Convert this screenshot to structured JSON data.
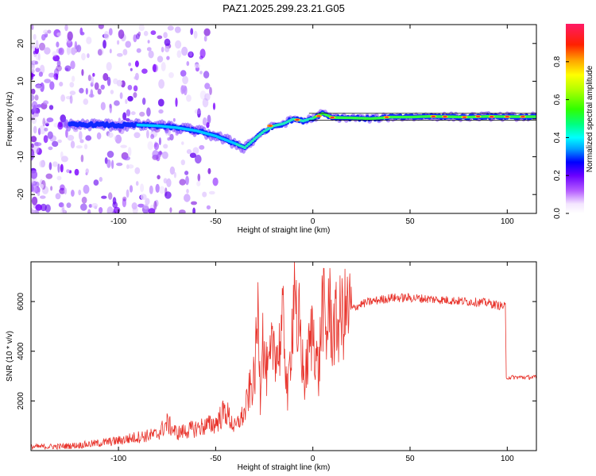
{
  "title": "PAZ1.2025.299.23.21.G05",
  "chart_data": [
    {
      "type": "heatmap",
      "name": "spectrogram",
      "xlabel": "Height of straight line (km)",
      "ylabel": "Frequency (Hz)",
      "xlim": [
        -145,
        115
      ],
      "ylim": [
        -25,
        25
      ],
      "x_ticks": [
        -100,
        -50,
        0,
        50,
        100
      ],
      "x_tick_labels": [
        "-100",
        "-50",
        "0",
        "50",
        "100"
      ],
      "y_ticks": [
        -20,
        -10,
        0,
        10,
        20
      ],
      "y_tick_labels": [
        "-20",
        "-10",
        "0",
        "10",
        "20"
      ],
      "ridge": {
        "x": [
          -120,
          -110,
          -100,
          -90,
          -80,
          -70,
          -60,
          -50,
          -45,
          -40,
          -35,
          -30,
          -25,
          -20,
          -15,
          -10,
          -5,
          0,
          5,
          10,
          20,
          30,
          40,
          50,
          60,
          70,
          80,
          90,
          100,
          110,
          115
        ],
        "y": [
          -1.5,
          -1.5,
          -1.7,
          -1.6,
          -1.8,
          -2.3,
          -3.1,
          -4.5,
          -5.5,
          -6.5,
          -7.6,
          -5.3,
          -3.2,
          -1.8,
          -1.2,
          0,
          -0.5,
          0.2,
          1.5,
          0.4,
          0.3,
          0.1,
          0.5,
          0.5,
          0.7,
          0.6,
          0.5,
          0.7,
          0.6,
          0.6,
          0.6
        ]
      },
      "colorbar": {
        "label": "Normalized spectral amplitude",
        "range": [
          0,
          1
        ],
        "ticks": [
          0.0,
          0.2,
          0.4,
          0.6,
          0.8
        ],
        "tick_labels": [
          "0.0",
          "0.2",
          "0.4",
          "0.6",
          "0.8"
        ]
      }
    },
    {
      "type": "line",
      "name": "snr",
      "xlabel": "Height of straight line (km)",
      "ylabel": "SNR (10 * v/v)",
      "xlim": [
        -145,
        115
      ],
      "ylim": [
        0,
        7600
      ],
      "x_ticks": [
        -100,
        -50,
        0,
        50,
        100
      ],
      "x_tick_labels": [
        "-100",
        "-50",
        "0",
        "50",
        "100"
      ],
      "y_ticks": [
        2000,
        4000,
        6000
      ],
      "y_tick_labels": [
        "2000",
        "4000",
        "6000"
      ],
      "series": [
        {
          "name": "SNR",
          "color": "#e8342c",
          "x": [
            -145,
            -130,
            -120,
            -110,
            -100,
            -90,
            -80,
            -75,
            -70,
            -60,
            -50,
            -45,
            -40,
            -38,
            -35,
            -33,
            -30,
            -28,
            -27,
            -26,
            -25,
            -23,
            -20,
            -18,
            -15,
            -13,
            -10,
            -9,
            -8,
            -7,
            -6,
            -5,
            -4,
            -3,
            -2,
            0,
            3,
            5,
            7,
            8,
            10,
            15,
            20,
            25,
            30,
            40,
            50,
            60,
            70,
            80,
            90,
            95,
            99,
            99.5,
            100,
            105,
            110,
            115
          ],
          "y": [
            150,
            170,
            220,
            300,
            400,
            550,
            650,
            1100,
            700,
            900,
            1100,
            1600,
            900,
            1200,
            1500,
            2300,
            2900,
            5800,
            2200,
            5200,
            3500,
            3000,
            4500,
            3800,
            5200,
            2000,
            6000,
            7600,
            3000,
            5500,
            4200,
            3200,
            2700,
            3500,
            4000,
            5000,
            3000,
            6200,
            4200,
            6100,
            4800,
            5400,
            5700,
            5900,
            6000,
            6150,
            6150,
            6100,
            6050,
            6000,
            5950,
            5850,
            5800,
            2900,
            2950,
            2950,
            2950,
            2950
          ]
        }
      ]
    }
  ]
}
